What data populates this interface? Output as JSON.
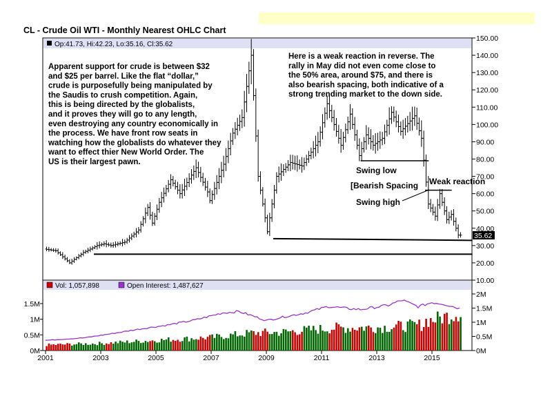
{
  "chart_data": {
    "type": "ohlc",
    "title": "CL - Crude Oil WTI - Monthly Nearest OHLC Chart",
    "price_panel": {
      "info": "Op:41.73, Hi:42.23, Lo:35.16, Cl:35.62",
      "last_price_label": "35.62",
      "ylim": [
        10,
        150
      ],
      "y_ticks": [
        "150.00",
        "140.00",
        "130.00",
        "120.00",
        "110.00",
        "100.00",
        "90.00",
        "80.00",
        "70.00",
        "60.00",
        "50.00",
        "40.00",
        "30.00",
        "20.00",
        "10.00"
      ],
      "y_tick_values": [
        150,
        140,
        130,
        120,
        110,
        100,
        90,
        80,
        70,
        60,
        50,
        40,
        30,
        20,
        10
      ],
      "key_points": [
        {
          "date": "2001-01",
          "price": 28
        },
        {
          "date": "2001-06",
          "price": 27
        },
        {
          "date": "2001-12",
          "price": 20
        },
        {
          "date": "2002-06",
          "price": 26
        },
        {
          "date": "2002-12",
          "price": 30
        },
        {
          "date": "2003-03",
          "price": 31
        },
        {
          "date": "2003-06",
          "price": 30
        },
        {
          "date": "2003-12",
          "price": 32
        },
        {
          "date": "2004-06",
          "price": 39
        },
        {
          "date": "2004-10",
          "price": 52
        },
        {
          "date": "2004-12",
          "price": 43
        },
        {
          "date": "2005-03",
          "price": 55
        },
        {
          "date": "2005-08",
          "price": 68
        },
        {
          "date": "2005-12",
          "price": 60
        },
        {
          "date": "2006-07",
          "price": 75
        },
        {
          "date": "2006-12",
          "price": 61
        },
        {
          "date": "2007-01",
          "price": 56
        },
        {
          "date": "2007-07",
          "price": 77
        },
        {
          "date": "2007-11",
          "price": 95
        },
        {
          "date": "2008-03",
          "price": 104
        },
        {
          "date": "2008-07",
          "price": 140
        },
        {
          "date": "2008-10",
          "price": 70
        },
        {
          "date": "2009-02",
          "price": 38
        },
        {
          "date": "2009-06",
          "price": 70
        },
        {
          "date": "2009-12",
          "price": 78
        },
        {
          "date": "2010-05",
          "price": 76
        },
        {
          "date": "2010-12",
          "price": 90
        },
        {
          "date": "2011-04",
          "price": 112
        },
        {
          "date": "2011-10",
          "price": 88
        },
        {
          "date": "2012-02",
          "price": 106
        },
        {
          "date": "2012-06",
          "price": 82
        },
        {
          "date": "2012-09",
          "price": 94
        },
        {
          "date": "2012-12",
          "price": 88
        },
        {
          "date": "2013-04",
          "price": 92
        },
        {
          "date": "2013-08",
          "price": 107
        },
        {
          "date": "2013-12",
          "price": 96
        },
        {
          "date": "2014-06",
          "price": 105
        },
        {
          "date": "2014-09",
          "price": 92
        },
        {
          "date": "2014-12",
          "price": 54
        },
        {
          "date": "2015-03",
          "price": 47
        },
        {
          "date": "2015-05",
          "price": 60
        },
        {
          "date": "2015-08",
          "price": 45
        },
        {
          "date": "2015-10",
          "price": 48
        },
        {
          "date": "2016-01",
          "price": 36
        }
      ],
      "annotations": [
        {
          "id": "left",
          "text": "Apparent support for crude is between $32 and $25 per barrel.  Like the flat “dollar,” crude is purposefully being manipulated by the Saudis to crush competition.  Again, this is being directed by the globalists, and it proves they will go to any length, even destroying any country economically in the process.  We have front row seats in watching how the globalists do whatever they want to effect thier New World Order.  The US is their largest pawn."
        },
        {
          "id": "right",
          "text": "Here is a weak reaction in reverse.  The rally in May did not even come close to the 50% area, around $75, and there is also bearish spacing, both indicative of a strong trending market to the down side."
        },
        {
          "id": "swing_low",
          "text": "Swing low"
        },
        {
          "id": "bearish_spacing",
          "text": "[Bearish Spacing"
        },
        {
          "id": "weak_reaction",
          "text": "Weak reaction"
        },
        {
          "id": "swing_high",
          "text": "Swing high"
        }
      ],
      "lines": [
        {
          "name": "support-low",
          "from": {
            "date": "2002-10",
            "price": 25
          },
          "to": {
            "date": "2016-03",
            "price": 25
          }
        },
        {
          "name": "support-high",
          "from": {
            "date": "2009-04",
            "price": 34
          },
          "to": {
            "date": "2016-03",
            "price": 33
          }
        },
        {
          "name": "swing-low-line",
          "from": {
            "date": "2012-06",
            "price": 79
          },
          "to": {
            "date": "2014-08",
            "price": 79
          }
        },
        {
          "name": "swing-high-line",
          "from": {
            "date": "2014-10",
            "price": 62
          },
          "to": {
            "date": "2015-06",
            "price": 62
          }
        }
      ]
    },
    "volume_panel": {
      "vol_label": "Vol: 1,057,898",
      "oi_label": "Open Interest: 1,487,627",
      "vol_color": "#cc0000",
      "oi_color": "#9933cc",
      "left_ticks": [
        "1.5M",
        "1M",
        "0.5M",
        "0M"
      ],
      "left_tick_values": [
        1500000,
        1000000,
        500000,
        0
      ],
      "right_ticks": [
        "2M",
        "1.5M",
        "1M",
        "0.5M",
        "0M"
      ],
      "right_tick_values": [
        2000000,
        1500000,
        1000000,
        500000,
        0
      ],
      "volume_key_points": [
        {
          "date": "2001-01",
          "value": 180000
        },
        {
          "date": "2003-01",
          "value": 230000
        },
        {
          "date": "2005-01",
          "value": 330000
        },
        {
          "date": "2007-01",
          "value": 420000
        },
        {
          "date": "2008-06",
          "value": 560000
        },
        {
          "date": "2009-06",
          "value": 580000
        },
        {
          "date": "2011-06",
          "value": 720000
        },
        {
          "date": "2013-06",
          "value": 750000
        },
        {
          "date": "2015-01",
          "value": 850000
        },
        {
          "date": "2016-01",
          "value": 1057898
        }
      ],
      "oi_key_points": [
        {
          "date": "2001-01",
          "value": 360000
        },
        {
          "date": "2002-06",
          "value": 450000
        },
        {
          "date": "2003-06",
          "value": 600000
        },
        {
          "date": "2004-06",
          "value": 760000
        },
        {
          "date": "2005-06",
          "value": 900000
        },
        {
          "date": "2006-06",
          "value": 1080000
        },
        {
          "date": "2007-06",
          "value": 1330000
        },
        {
          "date": "2008-01",
          "value": 1380000
        },
        {
          "date": "2008-08",
          "value": 1200000
        },
        {
          "date": "2009-01",
          "value": 1060000
        },
        {
          "date": "2009-08",
          "value": 1180000
        },
        {
          "date": "2010-06",
          "value": 1330000
        },
        {
          "date": "2011-04",
          "value": 1560000
        },
        {
          "date": "2012-01",
          "value": 1480000
        },
        {
          "date": "2012-06",
          "value": 1450000
        },
        {
          "date": "2013-06",
          "value": 1600000
        },
        {
          "date": "2013-12",
          "value": 1780000
        },
        {
          "date": "2014-07",
          "value": 1550000
        },
        {
          "date": "2015-01",
          "value": 1700000
        },
        {
          "date": "2015-06",
          "value": 1650000
        },
        {
          "date": "2016-01",
          "value": 1487627
        }
      ]
    },
    "x_ticks": [
      "2001",
      "2003",
      "2005",
      "2007",
      "2009",
      "2011",
      "2013",
      "2015"
    ]
  }
}
